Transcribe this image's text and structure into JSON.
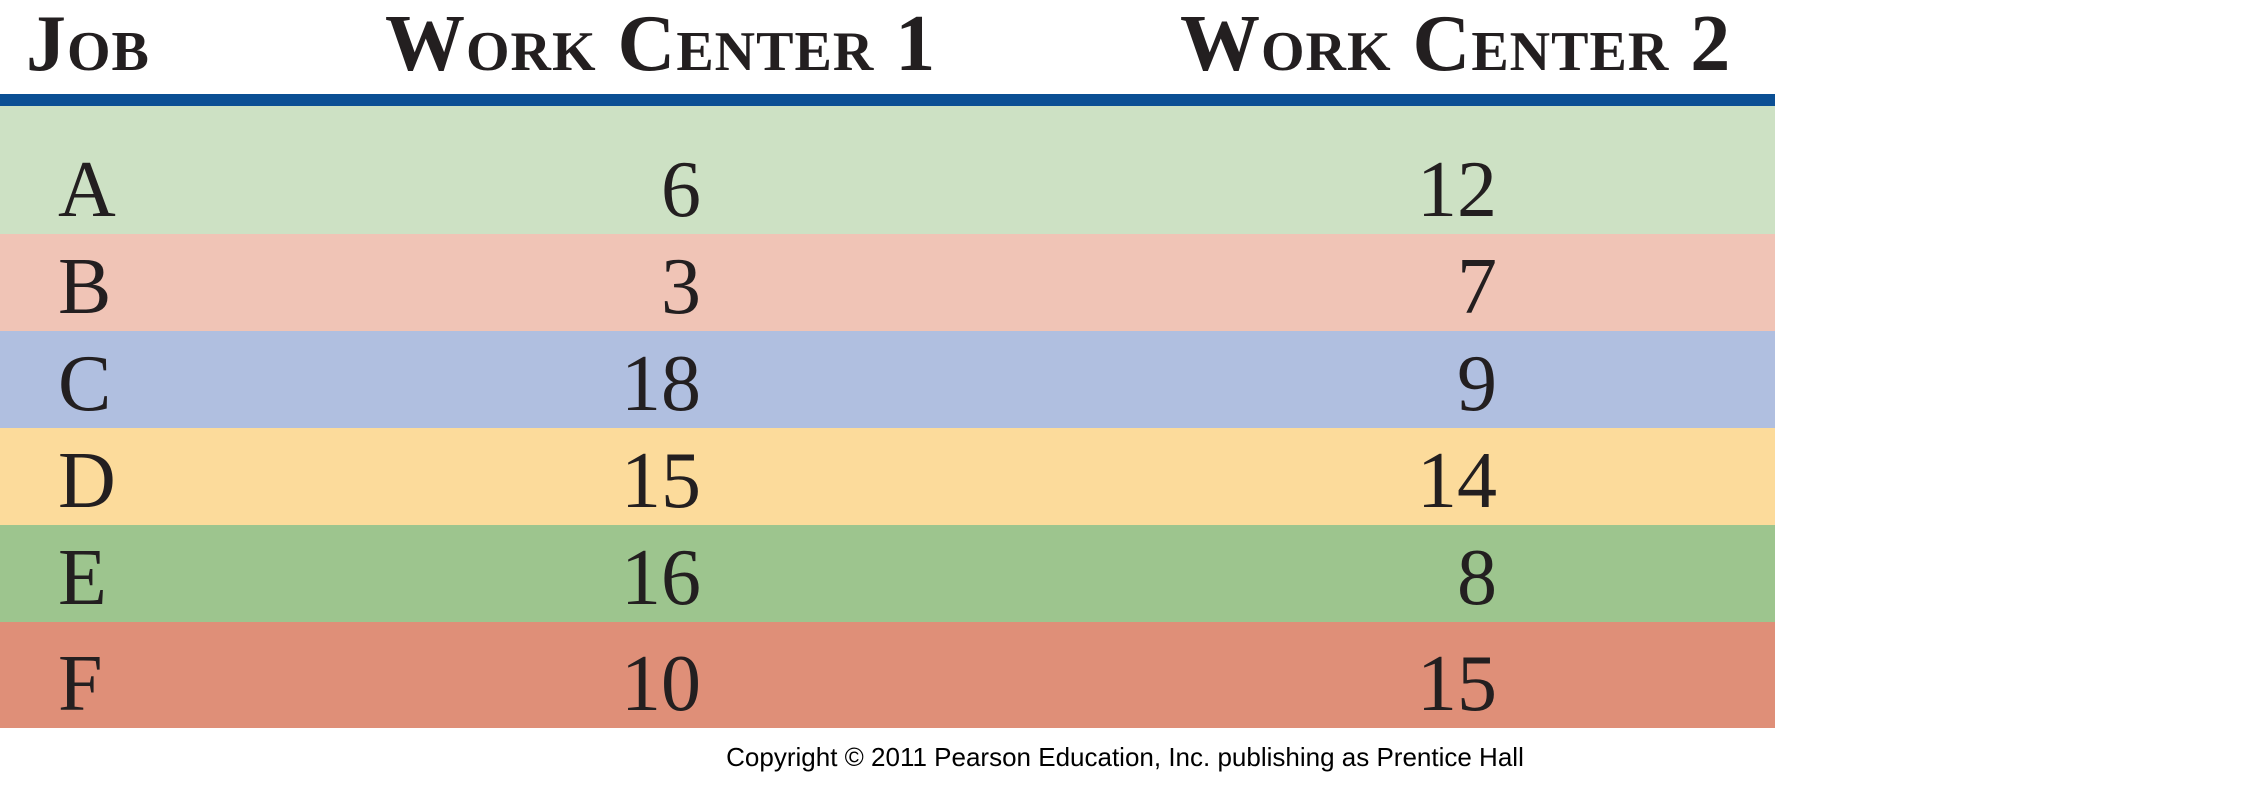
{
  "table": {
    "headers": {
      "job": "Job",
      "work_center_1": "Work Center 1",
      "work_center_2": "Work Center 2"
    },
    "rule_color": "#0b4f94",
    "rows": [
      {
        "job": "A",
        "wc1": "6",
        "wc2": "12",
        "color": "#cde1c4"
      },
      {
        "job": "B",
        "wc1": "3",
        "wc2": "7",
        "color": "#f0c4b6"
      },
      {
        "job": "C",
        "wc1": "18",
        "wc2": "9",
        "color": "#b0bfe0"
      },
      {
        "job": "D",
        "wc1": "15",
        "wc2": "14",
        "color": "#fcdb9b"
      },
      {
        "job": "E",
        "wc1": "16",
        "wc2": "8",
        "color": "#9dc58e"
      },
      {
        "job": "F",
        "wc1": "10",
        "wc2": "15",
        "color": "#df8f78"
      }
    ]
  },
  "footer": {
    "copyright": "Copyright © 2011 Pearson Education, Inc. publishing as Prentice Hall"
  }
}
